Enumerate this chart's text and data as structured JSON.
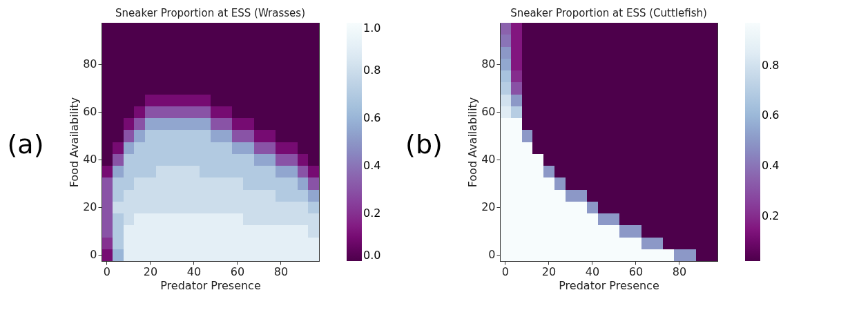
{
  "chart_data": [
    {
      "type": "heatmap",
      "title": "Sneaker Proportion at ESS (Wrasses)",
      "xlabel": "Predator Presence",
      "ylabel": "Food Availability",
      "annotations": [
        "(a)"
      ],
      "categories": [
        "0",
        null,
        null,
        null,
        "20",
        null,
        null,
        null,
        "40",
        null,
        null,
        null,
        "60",
        null,
        null,
        null,
        "80",
        null,
        null,
        null
      ],
      "y_categories": [
        null,
        null,
        null,
        "80",
        null,
        null,
        null,
        "60",
        null,
        null,
        null,
        "40",
        null,
        null,
        null,
        "20",
        null,
        null,
        null,
        "0"
      ],
      "cells": [
        [
          0,
          0,
          0,
          0,
          0,
          0,
          0,
          0,
          0,
          0,
          0,
          0,
          0,
          0,
          0,
          0,
          0,
          0,
          0,
          0
        ],
        [
          0,
          0,
          0,
          0,
          0,
          0,
          0,
          0,
          0,
          0,
          0,
          0,
          0,
          0,
          0,
          0,
          0,
          0,
          0,
          0
        ],
        [
          0,
          0,
          0,
          0,
          0,
          0,
          0,
          0,
          0,
          0,
          0,
          0,
          0,
          0,
          0,
          0,
          0,
          0,
          0,
          0
        ],
        [
          0,
          0,
          0,
          0,
          0,
          0,
          0,
          0,
          0,
          0,
          0,
          0,
          0,
          0,
          0,
          0,
          0,
          0,
          0,
          0
        ],
        [
          0,
          0,
          0,
          0,
          0,
          0,
          0,
          0,
          0,
          0,
          0,
          0,
          0,
          0,
          0,
          0,
          0,
          0,
          0,
          0
        ],
        [
          0,
          0,
          0,
          0,
          0,
          0,
          0,
          0,
          0,
          0,
          0,
          0,
          0,
          0,
          0,
          0,
          0,
          0,
          0,
          0
        ],
        [
          0,
          0,
          0,
          0,
          0.1,
          0.1,
          0.1,
          0.1,
          0.1,
          0.1,
          0,
          0,
          0,
          0,
          0,
          0,
          0,
          0,
          0,
          0
        ],
        [
          0,
          0,
          0,
          0.1,
          0.3,
          0.3,
          0.3,
          0.3,
          0.3,
          0.3,
          0.1,
          0.1,
          0,
          0,
          0,
          0,
          0,
          0,
          0,
          0
        ],
        [
          0,
          0,
          0.1,
          0.3,
          0.55,
          0.55,
          0.55,
          0.55,
          0.55,
          0.55,
          0.3,
          0.3,
          0.1,
          0.1,
          0,
          0,
          0,
          0,
          0,
          0
        ],
        [
          0,
          0,
          0.3,
          0.55,
          0.7,
          0.7,
          0.7,
          0.7,
          0.7,
          0.7,
          0.55,
          0.55,
          0.3,
          0.3,
          0.1,
          0.1,
          0,
          0,
          0,
          0
        ],
        [
          0,
          0.1,
          0.55,
          0.7,
          0.7,
          0.7,
          0.7,
          0.7,
          0.7,
          0.7,
          0.7,
          0.7,
          0.55,
          0.55,
          0.3,
          0.3,
          0.1,
          0.1,
          0,
          0
        ],
        [
          0,
          0.3,
          0.7,
          0.7,
          0.7,
          0.7,
          0.7,
          0.7,
          0.7,
          0.7,
          0.7,
          0.7,
          0.7,
          0.7,
          0.55,
          0.55,
          0.3,
          0.3,
          0.1,
          0
        ],
        [
          0.1,
          0.55,
          0.7,
          0.7,
          0.7,
          0.8,
          0.8,
          0.8,
          0.8,
          0.7,
          0.7,
          0.7,
          0.7,
          0.7,
          0.7,
          0.7,
          0.55,
          0.55,
          0.3,
          0.1
        ],
        [
          0.3,
          0.7,
          0.7,
          0.8,
          0.8,
          0.8,
          0.8,
          0.8,
          0.8,
          0.8,
          0.8,
          0.8,
          0.8,
          0.7,
          0.7,
          0.7,
          0.7,
          0.7,
          0.55,
          0.3
        ],
        [
          0.3,
          0.7,
          0.8,
          0.8,
          0.8,
          0.8,
          0.8,
          0.8,
          0.8,
          0.8,
          0.8,
          0.8,
          0.8,
          0.8,
          0.8,
          0.8,
          0.7,
          0.7,
          0.7,
          0.55
        ],
        [
          0.3,
          0.8,
          0.8,
          0.8,
          0.8,
          0.8,
          0.8,
          0.8,
          0.8,
          0.8,
          0.8,
          0.8,
          0.8,
          0.8,
          0.8,
          0.8,
          0.8,
          0.8,
          0.8,
          0.7
        ],
        [
          0.3,
          0.7,
          0.8,
          0.9,
          0.9,
          0.9,
          0.9,
          0.9,
          0.9,
          0.9,
          0.9,
          0.9,
          0.9,
          0.8,
          0.8,
          0.8,
          0.8,
          0.8,
          0.8,
          0.8
        ],
        [
          0.3,
          0.7,
          0.9,
          0.9,
          0.9,
          0.9,
          0.9,
          0.9,
          0.9,
          0.9,
          0.9,
          0.9,
          0.9,
          0.9,
          0.9,
          0.9,
          0.9,
          0.9,
          0.9,
          0.8
        ],
        [
          0.2,
          0.7,
          0.9,
          0.9,
          0.9,
          0.9,
          0.9,
          0.9,
          0.9,
          0.9,
          0.9,
          0.9,
          0.9,
          0.9,
          0.9,
          0.9,
          0.9,
          0.9,
          0.9,
          0.9
        ],
        [
          0.1,
          0.6,
          0.9,
          0.9,
          0.9,
          0.9,
          0.9,
          0.9,
          0.9,
          0.9,
          0.9,
          0.9,
          0.9,
          0.9,
          0.9,
          0.9,
          0.9,
          0.9,
          0.9,
          0.9
        ]
      ],
      "clim": [
        0,
        1
      ],
      "cticks": [
        {
          "value": 0,
          "label": "0.0"
        },
        0.2,
        0.4,
        0.6,
        0.8,
        {
          "value": 1,
          "label": "1.0"
        }
      ]
    },
    {
      "type": "heatmap",
      "title": "Sneaker Proportion at ESS (Cuttlefish)",
      "xlabel": "Predator Presence",
      "ylabel": "Food Availability",
      "annotations": [
        "(b)"
      ],
      "categories": [
        "0",
        null,
        null,
        null,
        "20",
        null,
        null,
        null,
        "40",
        null,
        null,
        null,
        "60",
        null,
        null,
        null,
        "80",
        null,
        null,
        null
      ],
      "y_categories": [
        null,
        null,
        null,
        "80",
        null,
        null,
        null,
        "60",
        null,
        null,
        null,
        "40",
        null,
        null,
        null,
        "20",
        null,
        null,
        null,
        "0"
      ],
      "cells": [
        [
          0.35,
          0.15,
          0.02,
          0.02,
          0.02,
          0.02,
          0.02,
          0.02,
          0.02,
          0.02,
          0.02,
          0.02,
          0.02,
          0.02,
          0.02,
          0.02,
          0.02,
          0.02,
          0.02,
          0.02
        ],
        [
          0.4,
          0.15,
          0.02,
          0.02,
          0.02,
          0.02,
          0.02,
          0.02,
          0.02,
          0.02,
          0.02,
          0.02,
          0.02,
          0.02,
          0.02,
          0.02,
          0.02,
          0.02,
          0.02,
          0.02
        ],
        [
          0.5,
          0.15,
          0.02,
          0.02,
          0.02,
          0.02,
          0.02,
          0.02,
          0.02,
          0.02,
          0.02,
          0.02,
          0.02,
          0.02,
          0.02,
          0.02,
          0.02,
          0.02,
          0.02,
          0.02
        ],
        [
          0.55,
          0.15,
          0.02,
          0.02,
          0.02,
          0.02,
          0.02,
          0.02,
          0.02,
          0.02,
          0.02,
          0.02,
          0.02,
          0.02,
          0.02,
          0.02,
          0.02,
          0.02,
          0.02,
          0.02
        ],
        [
          0.65,
          0.2,
          0.02,
          0.02,
          0.02,
          0.02,
          0.02,
          0.02,
          0.02,
          0.02,
          0.02,
          0.02,
          0.02,
          0.02,
          0.02,
          0.02,
          0.02,
          0.02,
          0.02,
          0.02
        ],
        [
          0.7,
          0.3,
          0.02,
          0.02,
          0.02,
          0.02,
          0.02,
          0.02,
          0.02,
          0.02,
          0.02,
          0.02,
          0.02,
          0.02,
          0.02,
          0.02,
          0.02,
          0.02,
          0.02,
          0.02
        ],
        [
          0.8,
          0.5,
          0.02,
          0.02,
          0.02,
          0.02,
          0.02,
          0.02,
          0.02,
          0.02,
          0.02,
          0.02,
          0.02,
          0.02,
          0.02,
          0.02,
          0.02,
          0.02,
          0.02,
          0.02
        ],
        [
          0.85,
          0.7,
          0.02,
          0.02,
          0.02,
          0.02,
          0.02,
          0.02,
          0.02,
          0.02,
          0.02,
          0.02,
          0.02,
          0.02,
          0.02,
          0.02,
          0.02,
          0.02,
          0.02,
          0.02
        ],
        [
          0.97,
          0.97,
          0.02,
          0.02,
          0.02,
          0.02,
          0.02,
          0.02,
          0.02,
          0.02,
          0.02,
          0.02,
          0.02,
          0.02,
          0.02,
          0.02,
          0.02,
          0.02,
          0.02,
          0.02
        ],
        [
          0.97,
          0.97,
          0.5,
          0.02,
          0.02,
          0.02,
          0.02,
          0.02,
          0.02,
          0.02,
          0.02,
          0.02,
          0.02,
          0.02,
          0.02,
          0.02,
          0.02,
          0.02,
          0.02,
          0.02
        ],
        [
          0.97,
          0.97,
          0.97,
          0.02,
          0.02,
          0.02,
          0.02,
          0.02,
          0.02,
          0.02,
          0.02,
          0.02,
          0.02,
          0.02,
          0.02,
          0.02,
          0.02,
          0.02,
          0.02,
          0.02
        ],
        [
          0.97,
          0.97,
          0.97,
          0.97,
          0.02,
          0.02,
          0.02,
          0.02,
          0.02,
          0.02,
          0.02,
          0.02,
          0.02,
          0.02,
          0.02,
          0.02,
          0.02,
          0.02,
          0.02,
          0.02
        ],
        [
          0.97,
          0.97,
          0.97,
          0.97,
          0.5,
          0.02,
          0.02,
          0.02,
          0.02,
          0.02,
          0.02,
          0.02,
          0.02,
          0.02,
          0.02,
          0.02,
          0.02,
          0.02,
          0.02,
          0.02
        ],
        [
          0.97,
          0.97,
          0.97,
          0.97,
          0.97,
          0.5,
          0.02,
          0.02,
          0.02,
          0.02,
          0.02,
          0.02,
          0.02,
          0.02,
          0.02,
          0.02,
          0.02,
          0.02,
          0.02,
          0.02
        ],
        [
          0.97,
          0.97,
          0.97,
          0.97,
          0.97,
          0.97,
          0.5,
          0.5,
          0.02,
          0.02,
          0.02,
          0.02,
          0.02,
          0.02,
          0.02,
          0.02,
          0.02,
          0.02,
          0.02,
          0.02
        ],
        [
          0.97,
          0.97,
          0.97,
          0.97,
          0.97,
          0.97,
          0.97,
          0.97,
          0.5,
          0.02,
          0.02,
          0.02,
          0.02,
          0.02,
          0.02,
          0.02,
          0.02,
          0.02,
          0.02,
          0.02
        ],
        [
          0.97,
          0.97,
          0.97,
          0.97,
          0.97,
          0.97,
          0.97,
          0.97,
          0.97,
          0.5,
          0.5,
          0.02,
          0.02,
          0.02,
          0.02,
          0.02,
          0.02,
          0.02,
          0.02,
          0.02
        ],
        [
          0.97,
          0.97,
          0.97,
          0.97,
          0.97,
          0.97,
          0.97,
          0.97,
          0.97,
          0.97,
          0.97,
          0.5,
          0.5,
          0.02,
          0.02,
          0.02,
          0.02,
          0.02,
          0.02,
          0.02
        ],
        [
          0.97,
          0.97,
          0.97,
          0.97,
          0.97,
          0.97,
          0.97,
          0.97,
          0.97,
          0.97,
          0.97,
          0.97,
          0.97,
          0.5,
          0.5,
          0.02,
          0.02,
          0.02,
          0.02,
          0.02
        ],
        [
          0.97,
          0.97,
          0.97,
          0.97,
          0.97,
          0.97,
          0.97,
          0.97,
          0.97,
          0.97,
          0.97,
          0.97,
          0.97,
          0.97,
          0.97,
          0.97,
          0.5,
          0.5,
          0.02,
          0.02
        ]
      ],
      "clim": [
        0.02,
        0.97
      ],
      "cticks": [
        0.2,
        0.4,
        0.6,
        0.8
      ]
    }
  ]
}
